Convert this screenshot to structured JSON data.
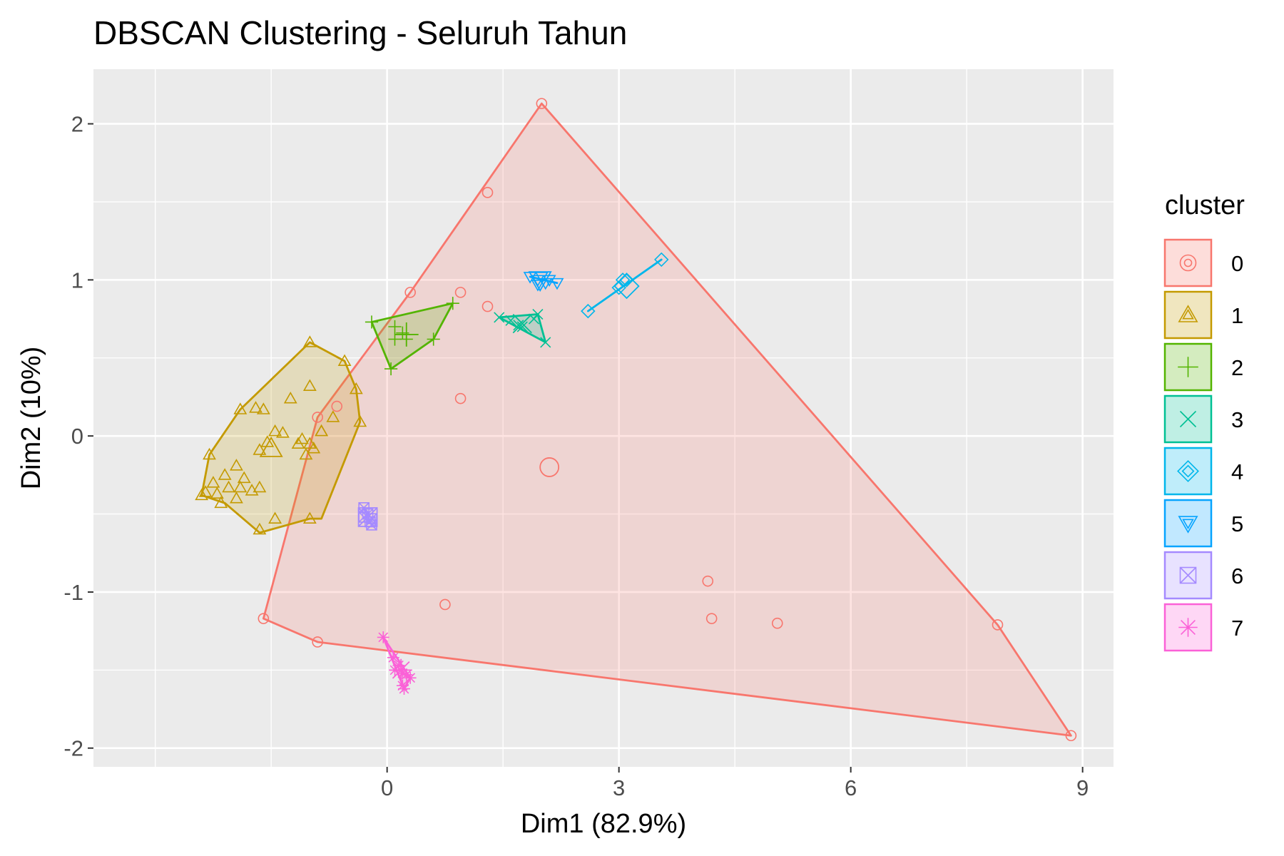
{
  "chart_data": {
    "type": "scatter",
    "title": "DBSCAN Clustering - Seluruh Tahun",
    "xlabel": "Dim1 (82.9%)",
    "ylabel": "Dim2 (10%)",
    "xlim": [
      -3.8,
      9.4
    ],
    "ylim": [
      -2.12,
      2.35
    ],
    "xticks": [
      0,
      3,
      6,
      9
    ],
    "xtick_labels": [
      "0",
      "3",
      "6",
      "9"
    ],
    "yticks": [
      -2,
      -1,
      0,
      1,
      2
    ],
    "ytick_labels": [
      "-2",
      "-1",
      "0",
      "1",
      "2"
    ],
    "grid": true,
    "legend_title": "cluster",
    "legend_position": "right",
    "centroid_marker": "larger symbol at cluster center",
    "series": [
      {
        "name": "0",
        "color": "#F8766D",
        "shape": "circle",
        "points": [
          [
            2.0,
            2.13
          ],
          [
            1.3,
            1.56
          ],
          [
            0.3,
            0.92
          ],
          [
            0.95,
            0.92
          ],
          [
            1.3,
            0.83
          ],
          [
            0.95,
            0.24
          ],
          [
            -0.9,
            0.12
          ],
          [
            -0.65,
            0.19
          ],
          [
            4.15,
            -0.93
          ],
          [
            4.2,
            -1.17
          ],
          [
            5.05,
            -1.2
          ],
          [
            0.75,
            -1.08
          ],
          [
            -1.6,
            -1.17
          ],
          [
            -0.9,
            -1.32
          ],
          [
            7.9,
            -1.21
          ],
          [
            8.85,
            -1.92
          ]
        ],
        "hull": [
          [
            2.0,
            2.13
          ],
          [
            7.9,
            -1.21
          ],
          [
            8.85,
            -1.92
          ],
          [
            -0.9,
            -1.32
          ],
          [
            -1.6,
            -1.17
          ],
          [
            -0.9,
            0.12
          ],
          [
            0.3,
            0.92
          ]
        ],
        "centroid": [
          2.1,
          -0.2
        ]
      },
      {
        "name": "1",
        "color": "#C49A00",
        "shape": "triangle",
        "points": [
          [
            -1.0,
            0.6
          ],
          [
            -0.55,
            0.48
          ],
          [
            -1.0,
            0.32
          ],
          [
            -1.25,
            0.24
          ],
          [
            -0.4,
            0.3
          ],
          [
            -0.7,
            0.12
          ],
          [
            -0.35,
            0.09
          ],
          [
            -0.85,
            0.03
          ],
          [
            -1.45,
            0.03
          ],
          [
            -1.7,
            0.18
          ],
          [
            -1.9,
            0.17
          ],
          [
            -1.6,
            0.17
          ],
          [
            -1.35,
            0.02
          ],
          [
            -1.1,
            -0.02
          ],
          [
            -1.0,
            -0.05
          ],
          [
            -0.95,
            -0.08
          ],
          [
            -1.05,
            -0.12
          ],
          [
            -1.15,
            -0.05
          ],
          [
            -1.55,
            -0.04
          ],
          [
            -1.65,
            -0.09
          ],
          [
            -1.95,
            -0.19
          ],
          [
            -2.3,
            -0.12
          ],
          [
            -2.1,
            -0.25
          ],
          [
            -1.85,
            -0.27
          ],
          [
            -2.25,
            -0.3
          ],
          [
            -2.35,
            -0.36
          ],
          [
            -2.2,
            -0.37
          ],
          [
            -2.05,
            -0.33
          ],
          [
            -1.9,
            -0.33
          ],
          [
            -1.75,
            -0.35
          ],
          [
            -2.15,
            -0.43
          ],
          [
            -2.4,
            -0.38
          ],
          [
            -1.95,
            -0.4
          ],
          [
            -1.65,
            -0.33
          ],
          [
            -1.45,
            -0.53
          ],
          [
            -1.65,
            -0.6
          ],
          [
            -1.0,
            -0.53
          ],
          [
            -0.85,
            0.03
          ]
        ],
        "hull": [
          [
            -1.0,
            0.6
          ],
          [
            -0.55,
            0.48
          ],
          [
            -0.4,
            0.3
          ],
          [
            -0.35,
            0.09
          ],
          [
            -0.85,
            -0.53
          ],
          [
            -1.0,
            -0.53
          ],
          [
            -1.65,
            -0.62
          ],
          [
            -2.1,
            -0.43
          ],
          [
            -2.4,
            -0.38
          ],
          [
            -2.3,
            -0.12
          ],
          [
            -1.9,
            0.17
          ]
        ],
        "centroid": [
          -1.5,
          -0.08
        ]
      },
      {
        "name": "2",
        "color": "#53B400",
        "shape": "plus",
        "points": [
          [
            -0.2,
            0.73
          ],
          [
            0.1,
            0.7
          ],
          [
            0.2,
            0.66
          ],
          [
            0.25,
            0.62
          ],
          [
            0.1,
            0.62
          ],
          [
            0.6,
            0.62
          ],
          [
            0.85,
            0.85
          ],
          [
            0.05,
            0.43
          ]
        ],
        "hull": [
          [
            -0.2,
            0.73
          ],
          [
            0.85,
            0.85
          ],
          [
            0.6,
            0.62
          ],
          [
            0.05,
            0.43
          ]
        ],
        "centroid": [
          0.25,
          0.65
        ]
      },
      {
        "name": "3",
        "color": "#00C094",
        "shape": "cross",
        "points": [
          [
            1.45,
            0.76
          ],
          [
            1.6,
            0.74
          ],
          [
            1.7,
            0.71
          ],
          [
            1.75,
            0.7
          ],
          [
            1.9,
            0.75
          ],
          [
            1.95,
            0.78
          ],
          [
            2.05,
            0.6
          ]
        ],
        "hull": [
          [
            1.45,
            0.76
          ],
          [
            1.95,
            0.78
          ],
          [
            2.05,
            0.6
          ]
        ],
        "centroid": [
          1.75,
          0.72
        ]
      },
      {
        "name": "4",
        "color": "#00B6EB",
        "shape": "diamond",
        "points": [
          [
            2.6,
            0.8
          ],
          [
            3.0,
            0.95
          ],
          [
            3.05,
            1.0
          ],
          [
            3.1,
            1.0
          ],
          [
            3.55,
            1.13
          ]
        ],
        "hull": [
          [
            2.6,
            0.8
          ],
          [
            3.55,
            1.13
          ]
        ],
        "centroid": [
          3.1,
          0.96
        ]
      },
      {
        "name": "5",
        "color": "#06A4FF",
        "shape": "triangle-down",
        "points": [
          [
            1.85,
            1.02
          ],
          [
            1.95,
            1.0
          ],
          [
            2.0,
            1.02
          ],
          [
            2.05,
            0.98
          ],
          [
            2.1,
            1.0
          ],
          [
            2.2,
            0.98
          ],
          [
            1.95,
            0.97
          ]
        ],
        "hull": [
          [
            1.85,
            1.02
          ],
          [
            2.2,
            0.98
          ]
        ],
        "centroid": [
          1.98,
          1.0
        ]
      },
      {
        "name": "6",
        "color": "#A58AFF",
        "shape": "square-cross",
        "points": [
          [
            -0.3,
            -0.46
          ],
          [
            -0.3,
            -0.52
          ],
          [
            -0.25,
            -0.5
          ],
          [
            -0.22,
            -0.55
          ],
          [
            -0.2,
            -0.57
          ],
          [
            -0.2,
            -0.53
          ]
        ],
        "hull": [
          [
            -0.3,
            -0.46
          ],
          [
            -0.2,
            -0.57
          ]
        ],
        "centroid": [
          -0.25,
          -0.52
        ]
      },
      {
        "name": "7",
        "color": "#FB61D7",
        "shape": "asterisk",
        "points": [
          [
            -0.05,
            -1.29
          ],
          [
            0.08,
            -1.42
          ],
          [
            0.1,
            -1.5
          ],
          [
            0.15,
            -1.47
          ],
          [
            0.2,
            -1.52
          ],
          [
            0.25,
            -1.53
          ],
          [
            0.3,
            -1.55
          ],
          [
            0.2,
            -1.6
          ],
          [
            0.22,
            -1.62
          ]
        ],
        "hull": [
          [
            -0.05,
            -1.29
          ],
          [
            0.3,
            -1.55
          ],
          [
            0.22,
            -1.62
          ]
        ],
        "centroid": [
          0.18,
          -1.5
        ]
      }
    ]
  }
}
